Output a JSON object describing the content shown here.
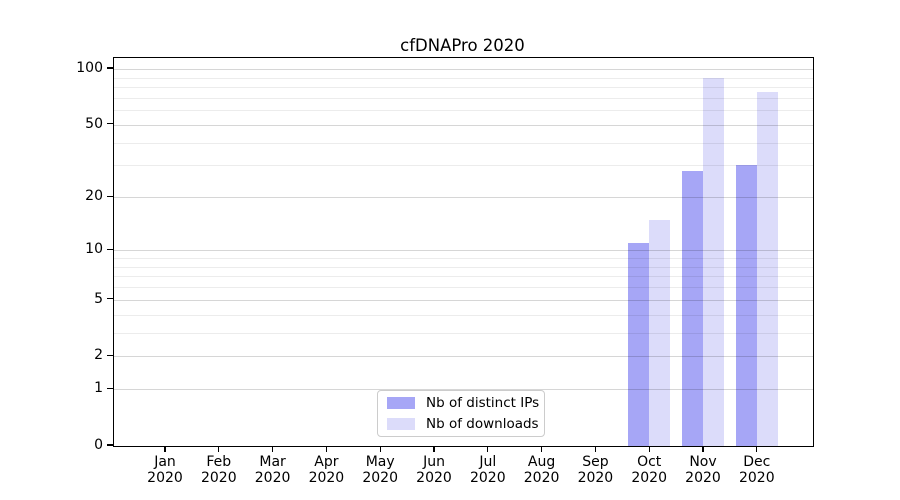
{
  "title": "cfDNAPro 2020",
  "colors": {
    "distinct_ips": "#a6a6f6",
    "downloads": "#dcdcfa",
    "axis": "#000000",
    "legend_border": "#cccccc"
  },
  "legend": {
    "items": [
      {
        "label": "Nb of distinct IPs",
        "color": "#a6a6f6"
      },
      {
        "label": "Nb of downloads",
        "color": "#dcdcfa"
      }
    ]
  },
  "chart_data": {
    "type": "bar",
    "title": "cfDNAPro 2020",
    "categories": [
      "Jan 2020",
      "Feb 2020",
      "Mar 2020",
      "Apr 2020",
      "May 2020",
      "Jun 2020",
      "Jul 2020",
      "Aug 2020",
      "Sep 2020",
      "Oct 2020",
      "Nov 2020",
      "Dec 2020"
    ],
    "series": [
      {
        "name": "Nb of distinct IPs",
        "color": "#a6a6f6",
        "values": [
          0,
          0,
          0,
          0,
          0,
          0,
          0,
          0,
          0,
          11,
          28,
          30
        ]
      },
      {
        "name": "Nb of downloads",
        "color": "#dcdcfa",
        "values": [
          0,
          0,
          0,
          0,
          0,
          0,
          0,
          0,
          0,
          15,
          90,
          75
        ]
      }
    ],
    "xlabel": "",
    "ylabel": "",
    "yscale": "log10(value+1)",
    "ylim": [
      0,
      115
    ],
    "y_ticks": [
      0,
      1,
      2,
      5,
      10,
      20,
      50,
      100
    ],
    "y_minor_gridlines": [
      3,
      4,
      6,
      7,
      8,
      9,
      30,
      40,
      60,
      70,
      80,
      90
    ],
    "grid": "on",
    "legend_position": "bottom-center"
  }
}
